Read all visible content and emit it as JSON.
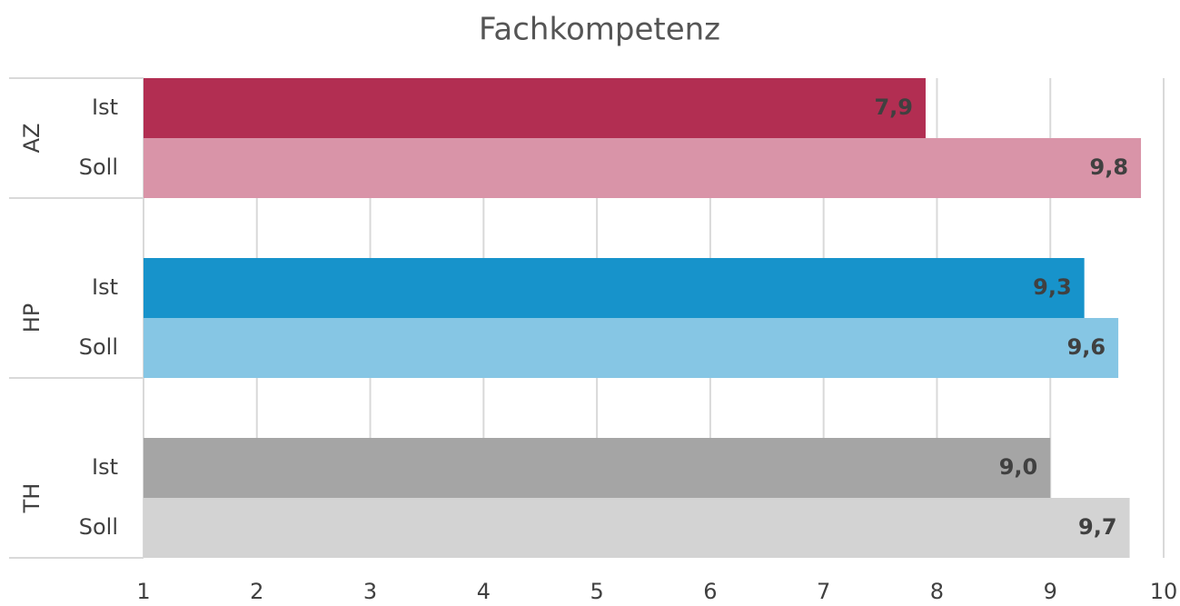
{
  "chart_data": {
    "type": "bar",
    "orientation": "horizontal",
    "title": "Fachkompetenz",
    "groups": [
      {
        "name": "AZ",
        "categories": [
          "Ist",
          "Soll"
        ],
        "values": [
          7.9,
          9.8
        ],
        "value_labels": [
          "7,9",
          "9,8"
        ],
        "colors": [
          "#b22e52",
          "#d994a8"
        ]
      },
      {
        "name": "HP",
        "categories": [
          "Ist",
          "Soll"
        ],
        "values": [
          9.3,
          9.6
        ],
        "value_labels": [
          "9,3",
          "9,6"
        ],
        "colors": [
          "#1793cb",
          "#86c6e4"
        ]
      },
      {
        "name": "TH",
        "categories": [
          "Ist",
          "Soll"
        ],
        "values": [
          9.0,
          9.7
        ],
        "value_labels": [
          "9,0",
          "9,7"
        ],
        "colors": [
          "#a5a5a5",
          "#d3d3d3"
        ]
      }
    ],
    "xlim": [
      1,
      10
    ],
    "xticks": [
      1,
      2,
      3,
      4,
      5,
      6,
      7,
      8,
      9,
      10
    ],
    "grid": true
  }
}
